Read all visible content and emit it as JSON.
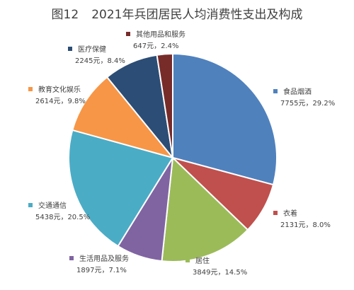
{
  "figure": {
    "number": "图12",
    "title": "2021年兵团居民人均消费性支出及构成"
  },
  "chart_data": {
    "type": "pie",
    "title": "2021年兵团居民人均消费性支出及构成",
    "unit": "元",
    "start": "12 o'clock",
    "direction": "clockwise",
    "legend": "none",
    "slices": [
      {
        "name": "食品烟酒",
        "value": 7755,
        "percent": "29.2%",
        "label": "7755元，29.2%",
        "color": "#4F81BD"
      },
      {
        "name": "衣着",
        "value": 2131,
        "percent": "8.0%",
        "label": "2131元，8.0%",
        "color": "#C0504D"
      },
      {
        "name": "居住",
        "value": 3849,
        "percent": "14.5%",
        "label": "3849元，14.5%",
        "color": "#9BBB59"
      },
      {
        "name": "生活用品及服务",
        "value": 1897,
        "percent": "7.1%",
        "label": "1897元，7.1%",
        "color": "#8064A2"
      },
      {
        "name": "交通通信",
        "value": 5438,
        "percent": "20.5%",
        "label": "5438元，20.5%",
        "color": "#4BACC6"
      },
      {
        "name": "教育文化娱乐",
        "value": 2614,
        "percent": "9.8%",
        "label": "2614元，9.8%",
        "color": "#F79646"
      },
      {
        "name": "医疗保健",
        "value": 2245,
        "percent": "8.4%",
        "label": "2245元，8.4%",
        "color": "#2C4D75"
      },
      {
        "name": "其他用品和服务",
        "value": 647,
        "percent": "2.4%",
        "label": "647元，2.4%",
        "color": "#772C2A"
      }
    ]
  }
}
